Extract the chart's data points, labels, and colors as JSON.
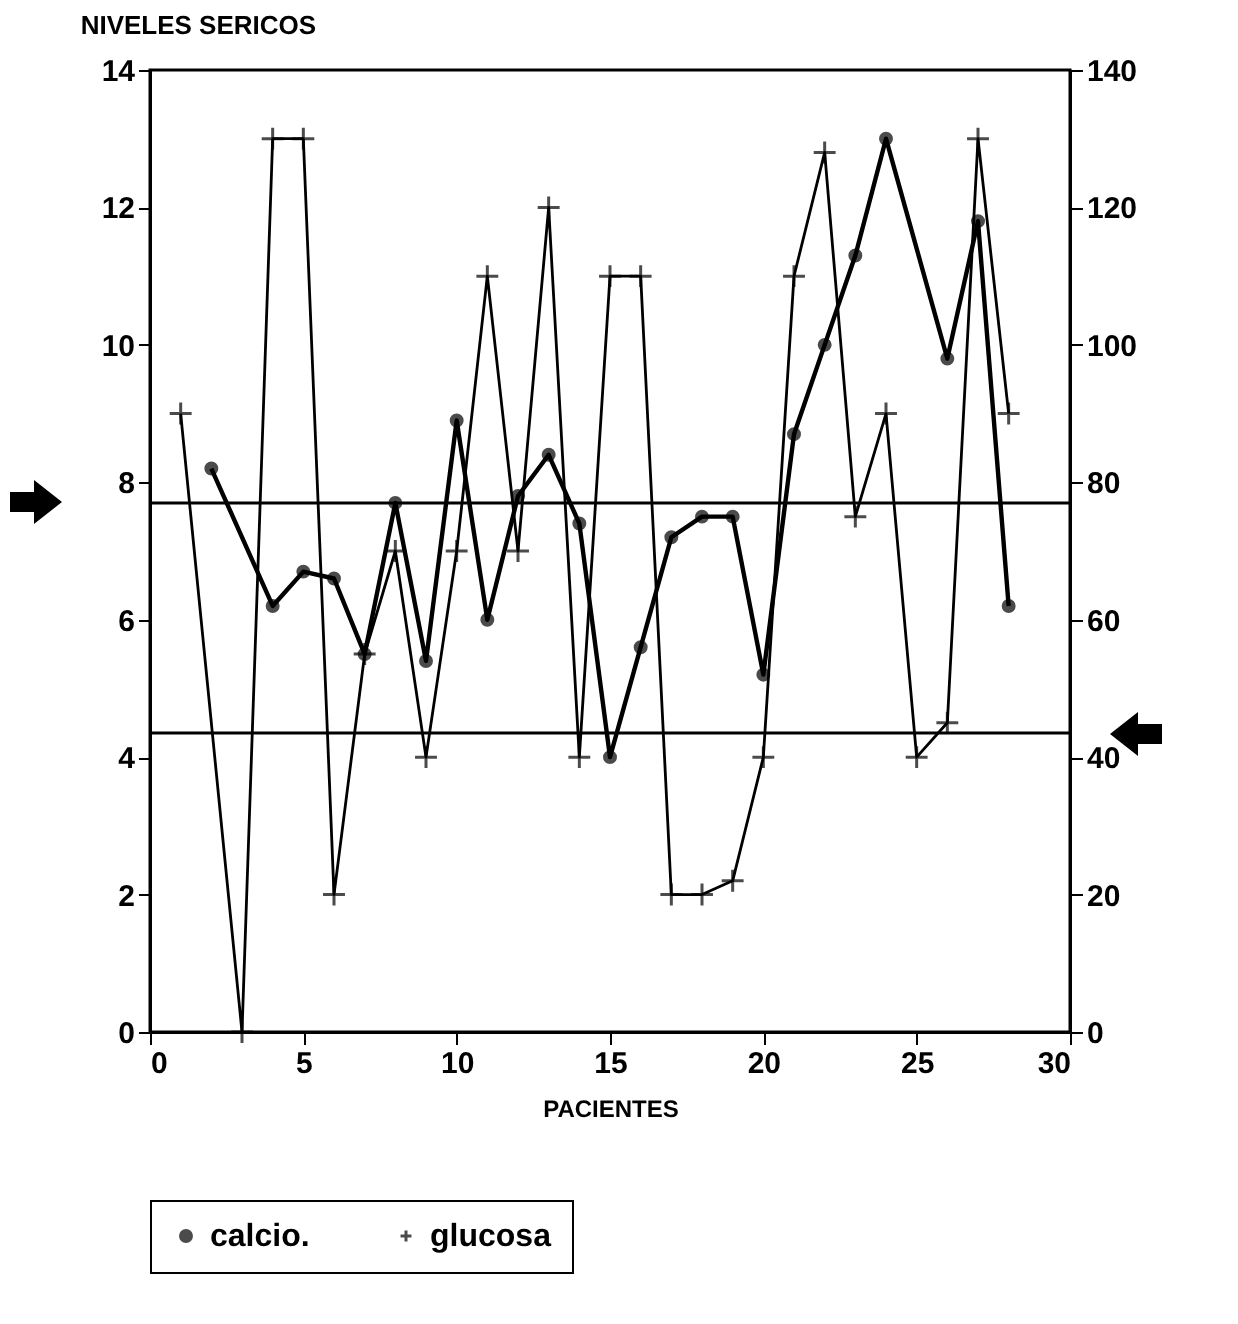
{
  "chart_data": {
    "type": "line",
    "title": "NIVELES SERICOS",
    "xlabel": "PACIENTES",
    "xlim": [
      0,
      30
    ],
    "xticks": [
      0,
      5,
      10,
      15,
      20,
      25,
      30
    ],
    "ylim": [
      0,
      14
    ],
    "yticks": [
      0,
      2,
      4,
      6,
      8,
      10,
      12,
      14
    ],
    "y2lim": [
      0,
      140
    ],
    "y2ticks": [
      0,
      20,
      40,
      60,
      80,
      100,
      120,
      140
    ],
    "grid": false,
    "legend": "bottom",
    "line_style": "solid",
    "ref_lines": [
      {
        "axis": "y",
        "value": 7.7
      },
      {
        "axis": "y",
        "value": 4.35
      }
    ],
    "series": [
      {
        "name": "calcio.",
        "color": "#000000",
        "marker": "circle",
        "x": [
          2,
          4,
          5,
          6,
          7,
          8,
          9,
          10,
          11,
          12,
          13,
          14,
          15,
          16,
          17,
          18,
          19,
          20,
          21,
          22,
          23,
          24,
          26,
          27,
          28
        ],
        "values": [
          8.2,
          6.2,
          6.7,
          6.6,
          5.5,
          7.7,
          5.4,
          8.9,
          6.0,
          7.8,
          8.4,
          7.4,
          4.0,
          5.6,
          7.2,
          7.5,
          7.5,
          5.2,
          8.7,
          10.0,
          11.3,
          13.0,
          9.8,
          11.8,
          6.2
        ]
      },
      {
        "name": "glucosa",
        "color": "#000000",
        "marker": "cross",
        "axis": "y2",
        "x": [
          1,
          3,
          4,
          5,
          6,
          7,
          8,
          9,
          10,
          11,
          12,
          13,
          14,
          15,
          16,
          17,
          18,
          19,
          20,
          21,
          22,
          23,
          24,
          25,
          26,
          27,
          28
        ],
        "values": [
          90,
          0,
          130,
          130,
          20,
          55,
          70,
          40,
          70,
          110,
          70,
          120,
          40,
          110,
          110,
          20,
          20,
          22,
          40,
          110,
          128,
          75,
          90,
          40,
          45,
          130,
          90
        ]
      }
    ]
  }
}
